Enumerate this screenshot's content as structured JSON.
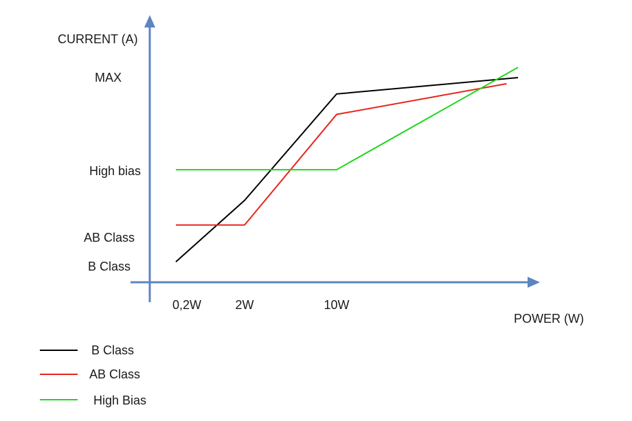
{
  "chart_data": {
    "type": "line",
    "ylabel": "CURRENT (A)",
    "xlabel": "POWER (W)",
    "x_ticks": [
      "0,2W",
      "2W",
      "10W"
    ],
    "y_ticks": [
      "MAX",
      "High bias",
      "AB Class",
      "B Class"
    ],
    "grid": false,
    "legend_position": "bottom-left",
    "series": [
      {
        "name": "B Class",
        "color": "#000000",
        "points": [
          [
            0,
            0.1
          ],
          [
            1,
            0.4
          ],
          [
            2,
            0.92
          ],
          [
            2.8,
            1.0
          ]
        ]
      },
      {
        "name": "AB Class",
        "color": "#e8231b",
        "points": [
          [
            0,
            0.28
          ],
          [
            1,
            0.28
          ],
          [
            2,
            0.82
          ],
          [
            2.75,
            0.97
          ]
        ]
      },
      {
        "name": "High Bias",
        "color": "#1fd81f",
        "points": [
          [
            0,
            0.55
          ],
          [
            2,
            0.55
          ],
          [
            2.8,
            1.05
          ]
        ]
      }
    ],
    "legend": [
      {
        "label": "B Class",
        "color": "#000000"
      },
      {
        "label": "AB Class",
        "color": "#e8231b"
      },
      {
        "label": "High Bias",
        "color": "#1fd81f"
      }
    ]
  }
}
